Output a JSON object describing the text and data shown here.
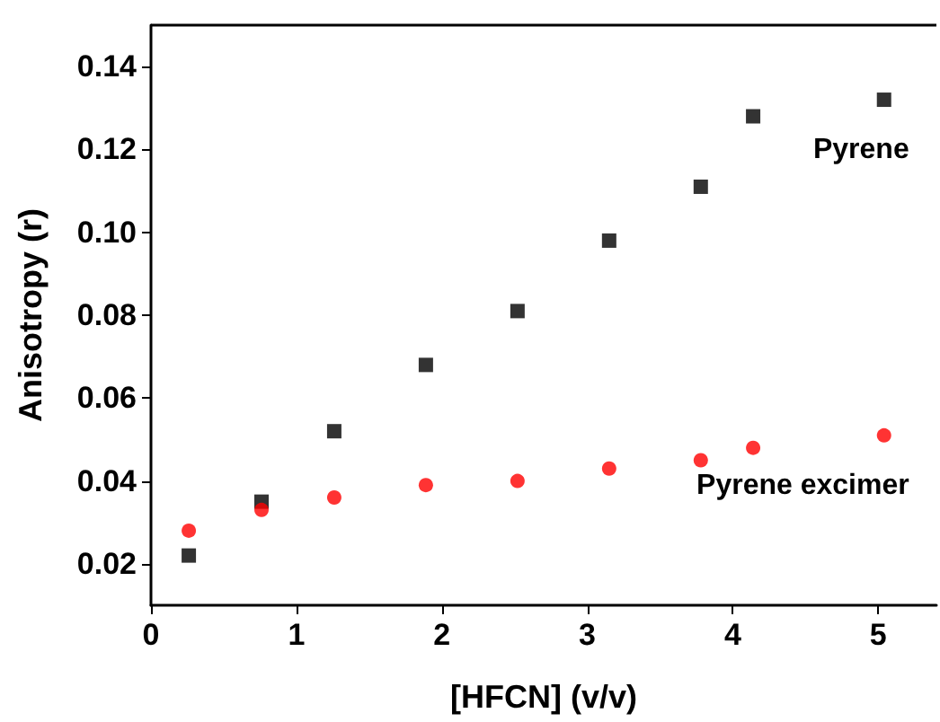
{
  "chart_data": {
    "type": "scatter",
    "xlabel": "[HFCN] (v/v)",
    "ylabel": "Anisotropy (r)",
    "x": [
      0.26,
      0.76,
      1.26,
      1.89,
      2.52,
      3.15,
      3.78,
      4.14,
      5.04
    ],
    "series": [
      {
        "name": "Pyrene",
        "color": "#000000",
        "marker": "square",
        "values": [
          0.022,
          0.035,
          0.052,
          0.068,
          0.081,
          0.098,
          0.111,
          0.128,
          0.132
        ]
      },
      {
        "name": "Pyrene excimer",
        "color": "#ff0000",
        "marker": "circle",
        "values": [
          0.028,
          0.033,
          0.036,
          0.039,
          0.04,
          0.043,
          0.045,
          0.048,
          0.051
        ]
      }
    ],
    "xlim": [
      0,
      5.4
    ],
    "xticks": [
      0,
      1,
      2,
      3,
      4,
      5
    ],
    "ylim": [
      0.01,
      0.15
    ],
    "yticks": [
      {
        "value": 0.02,
        "label": "0.02"
      },
      {
        "value": 0.04,
        "label": "0.04"
      },
      {
        "value": 0.06,
        "label": "0.06"
      },
      {
        "value": 0.08,
        "label": "0.08"
      },
      {
        "value": 0.1,
        "label": "0.10"
      },
      {
        "value": 0.12,
        "label": "0.12"
      },
      {
        "value": 0.14,
        "label": "0.14"
      }
    ],
    "grid": false,
    "legend": false
  }
}
